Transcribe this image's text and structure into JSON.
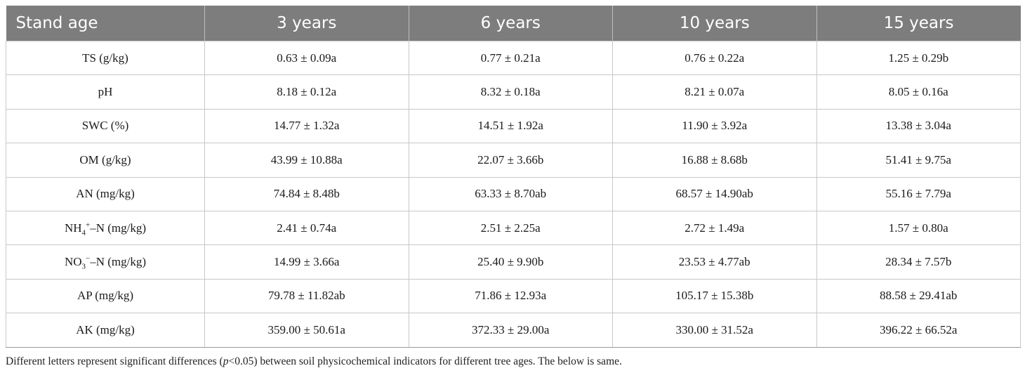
{
  "table": {
    "header": {
      "first": "Stand age",
      "years": [
        "3 years",
        "6 years",
        "10 years",
        "15 years"
      ]
    },
    "rows": [
      {
        "label": "TS (g/kg)",
        "values": [
          "0.63 ± 0.09a",
          "0.77 ± 0.21a",
          "0.76 ± 0.22a",
          "1.25 ± 0.29b"
        ]
      },
      {
        "label": "pH",
        "values": [
          "8.18 ± 0.12a",
          "8.32 ± 0.18a",
          "8.21 ± 0.07a",
          "8.05 ± 0.16a"
        ]
      },
      {
        "label": "SWC (%)",
        "values": [
          "14.77 ± 1.32a",
          "14.51 ± 1.92a",
          "11.90 ± 3.92a",
          "13.38 ± 3.04a"
        ]
      },
      {
        "label": "OM (g/kg)",
        "values": [
          "43.99 ± 10.88a",
          "22.07 ± 3.66b",
          "16.88 ± 8.68b",
          "51.41 ± 9.75a"
        ]
      },
      {
        "label": "AN (mg/kg)",
        "values": [
          "74.84 ± 8.48b",
          "63.33 ± 8.70ab",
          "68.57 ± 14.90ab",
          "55.16 ± 7.79a"
        ]
      },
      {
        "label_parts": {
          "pre": "NH",
          "sub": "4",
          "sup": "+",
          "post": "–N (mg/kg)"
        },
        "values": [
          "2.41 ± 0.74a",
          "2.51 ± 2.25a",
          "2.72 ± 1.49a",
          "1.57 ± 0.80a"
        ]
      },
      {
        "label_parts": {
          "pre": "NO",
          "sub": "3",
          "sup": "−",
          "post": "–N (mg/kg)"
        },
        "values": [
          "14.99 ± 3.66a",
          "25.40 ± 9.90b",
          "23.53 ± 4.77ab",
          "28.34 ± 7.57b"
        ]
      },
      {
        "label": "AP (mg/kg)",
        "values": [
          "79.78 ± 11.82ab",
          "71.86 ± 12.93a",
          "105.17 ± 15.38b",
          "88.58 ± 29.41ab"
        ]
      },
      {
        "label": "AK (mg/kg)",
        "values": [
          "359.00 ± 50.61a",
          "372.33 ± 29.00a",
          "330.00 ± 31.52a",
          "396.22 ± 66.52a"
        ]
      }
    ]
  },
  "footnote": {
    "pre": "Different letters represent significant differences (",
    "italic": "p",
    "post": "<0.05) between soil physicochemical indicators for different tree ages. The below is same."
  }
}
